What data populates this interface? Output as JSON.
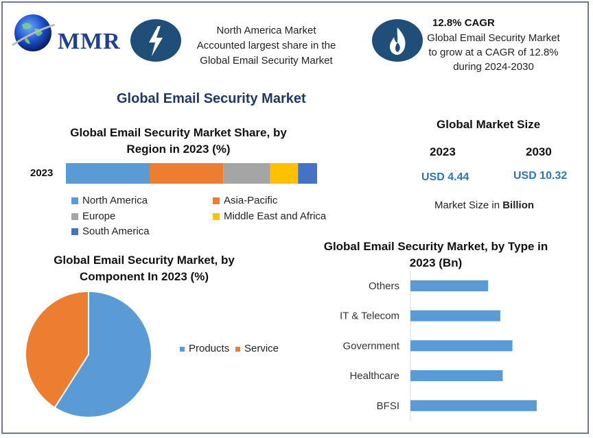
{
  "logo": {
    "text": "MMR"
  },
  "header": {
    "left_text": [
      "North America Market",
      "Accounted largest share in the",
      "Global Email Security Market"
    ],
    "right_title": "12.8% CAGR",
    "right_text": [
      "Global Email Security Market",
      "to grow at a CAGR of 12.8%",
      "during 2024-2030"
    ],
    "icon_left": "lightning-icon",
    "icon_right": "flame-icon",
    "icon_color": "#1f4e79"
  },
  "main_title": "Global Email Security Market",
  "market_size": {
    "title": "Global Market Size",
    "year_a": "2023",
    "year_b": "2030",
    "value_a": "USD 4.44",
    "value_b": "USD 10.32",
    "note_prefix": "Market Size in ",
    "note_bold": "Billion"
  },
  "chart_data": [
    {
      "type": "bar",
      "orientation": "horizontal-stacked",
      "title": "Global Email Security Market Share, by Region in 2023 (%)",
      "categories": [
        "2023"
      ],
      "series": [
        {
          "name": "North America",
          "values": [
            33
          ],
          "color": "#5b9bd5"
        },
        {
          "name": "Asia-Pacific",
          "values": [
            29
          ],
          "color": "#ed7d31"
        },
        {
          "name": "Europe",
          "values": [
            18.5
          ],
          "color": "#a5a5a5"
        },
        {
          "name": "Middle East and Africa",
          "values": [
            11
          ],
          "color": "#ffc000"
        },
        {
          "name": "South America",
          "values": [
            7.5
          ],
          "color": "#4472c4"
        }
      ],
      "legend": "bottom"
    },
    {
      "type": "pie",
      "title": "Global Email Security Market, by Component In 2023 (%)",
      "labels": [
        "Products",
        "Service"
      ],
      "values": [
        59,
        41
      ],
      "colors": [
        "#5b9bd5",
        "#ed7d31"
      ],
      "legend": "right"
    },
    {
      "type": "bar",
      "orientation": "horizontal",
      "title": "Global Email Security Market, by Type in 2023 (Bn)",
      "categories": [
        "Others",
        "IT & Telecom",
        "Government",
        "Healthcare",
        "BFSI"
      ],
      "values": [
        0.64,
        0.74,
        0.84,
        0.76,
        1.04
      ],
      "color": "#5b9bd5"
    }
  ]
}
